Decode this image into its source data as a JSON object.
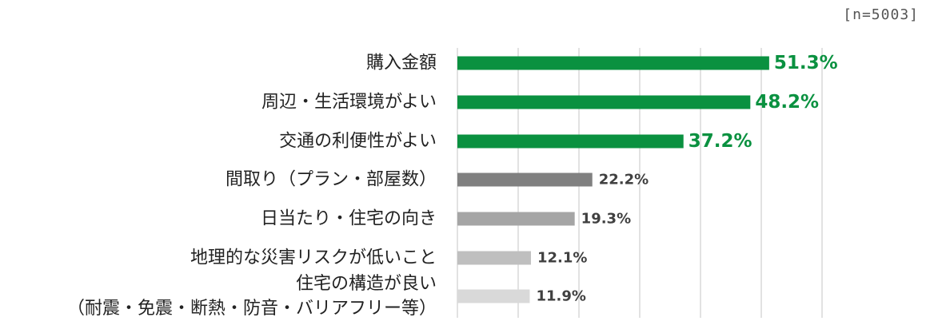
{
  "sample_size": "[n=5003]",
  "chart_data": {
    "type": "bar",
    "orientation": "horizontal",
    "value_suffix": "%",
    "xlim": [
      0,
      60
    ],
    "x_gridlines": [
      0,
      10,
      20,
      30,
      40,
      50,
      60
    ],
    "grid": true,
    "legend": "none",
    "categories": [
      [
        "購入金額"
      ],
      [
        "周辺・生活環境がよい"
      ],
      [
        "交通の利便性がよい"
      ],
      [
        "間取り（プラン・部屋数）"
      ],
      [
        "日当たり・住宅の向き"
      ],
      [
        "地理的な災害リスクが低いこと"
      ],
      [
        "住宅の構造が良い",
        "（耐震・免震・断熱・防音・バリアフリー等）"
      ]
    ],
    "values": [
      51.3,
      48.2,
      37.2,
      22.2,
      19.3,
      12.1,
      11.9
    ],
    "bar_colors": [
      "#0a9140",
      "#0a9140",
      "#0a9140",
      "#808080",
      "#a5a5a5",
      "#bfbfbf",
      "#d9d9d9"
    ],
    "label_colors": [
      "#0a9140",
      "#0a9140",
      "#0a9140",
      "#404040",
      "#404040",
      "#404040",
      "#404040"
    ],
    "label_emphasis": [
      true,
      true,
      true,
      false,
      false,
      false,
      false
    ]
  }
}
